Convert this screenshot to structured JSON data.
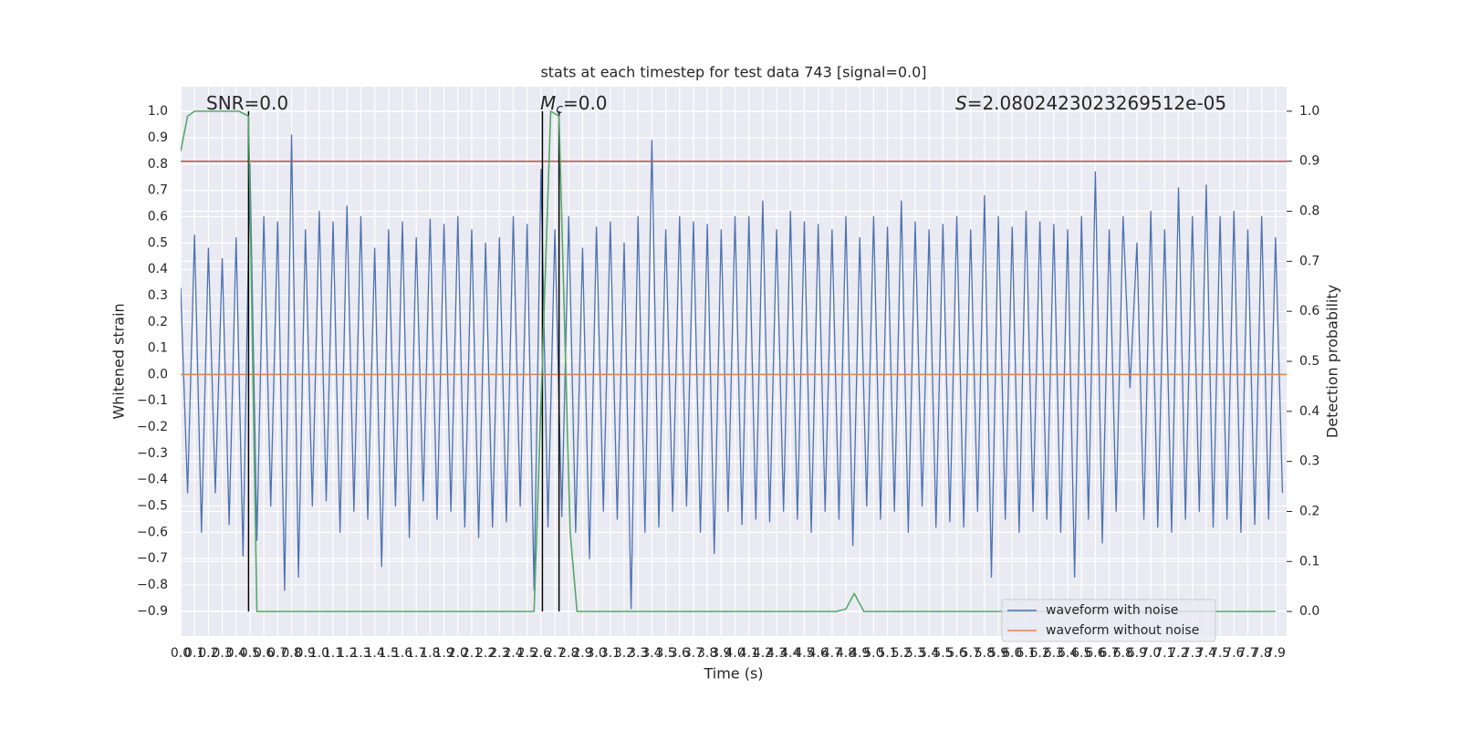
{
  "chart_data": {
    "type": "line",
    "title": "stats at each timestep for test data 743 [signal=0.0]",
    "xlabel": "Time (s)",
    "ylabel": "Whitened strain",
    "y2label": "Detection probability",
    "grid": true,
    "legend": "lower right",
    "xlim": [
      0,
      7.98
    ],
    "ylim": [
      -0.994,
      1.094
    ],
    "y2lim": [
      -0.049,
      1.049
    ],
    "xticks": [
      {
        "value": 0,
        "label": "0.0"
      },
      0.1,
      0.2,
      0.3,
      0.4,
      0.5,
      0.6,
      0.7,
      0.8,
      0.9,
      {
        "value": 1,
        "label": "1.0"
      },
      1.1,
      1.2,
      1.3,
      1.4,
      1.5,
      1.6,
      1.7,
      1.8,
      1.9,
      {
        "value": 2,
        "label": "2.0"
      },
      2.1,
      2.2,
      2.3,
      2.4,
      2.5,
      2.6,
      2.7,
      2.8,
      2.9,
      {
        "value": 3,
        "label": "3.0"
      },
      3.1,
      3.2,
      3.3,
      3.4,
      3.5,
      3.6,
      3.7,
      3.8,
      3.9,
      {
        "value": 4,
        "label": "4.0"
      },
      4.1,
      4.2,
      4.3,
      4.4,
      4.5,
      4.6,
      4.7,
      4.8,
      4.9,
      {
        "value": 5,
        "label": "5.0"
      },
      5.1,
      5.2,
      5.3,
      5.4,
      5.5,
      5.6,
      5.7,
      5.8,
      5.9,
      {
        "value": 6,
        "label": "6.0"
      },
      6.1,
      6.2,
      6.3,
      6.4,
      6.5,
      6.6,
      6.7,
      6.8,
      6.9,
      {
        "value": 7,
        "label": "7.0"
      },
      7.1,
      7.2,
      7.3,
      7.4,
      7.5,
      7.6,
      7.7,
      7.8,
      7.9
    ],
    "yticks": [
      {
        "value": 1,
        "label": "1.0"
      },
      0.9,
      0.8,
      0.7,
      0.6,
      0.5,
      0.4,
      0.3,
      0.2,
      0.1,
      {
        "value": 0,
        "label": "0.0"
      },
      {
        "value": -0.1,
        "label": "−0.1"
      },
      {
        "value": -0.2,
        "label": "−0.2"
      },
      {
        "value": -0.3,
        "label": "−0.3"
      },
      {
        "value": -0.4,
        "label": "−0.4"
      },
      {
        "value": -0.5,
        "label": "−0.5"
      },
      {
        "value": -0.6,
        "label": "−0.6"
      },
      {
        "value": -0.7,
        "label": "−0.7"
      },
      {
        "value": -0.8,
        "label": "−0.8"
      },
      {
        "value": -0.9,
        "label": "−0.9"
      }
    ],
    "y2ticks": [
      {
        "value": 1,
        "label": "1.0"
      },
      0.9,
      0.8,
      0.7,
      0.6,
      0.5,
      0.4,
      0.3,
      0.2,
      0.1,
      {
        "value": 0,
        "label": "0.0"
      }
    ],
    "series": [
      {
        "name": "waveform with noise",
        "color": "#4c72b0",
        "x": [
          0,
          0.05,
          0.1,
          0.15,
          0.2,
          0.25,
          0.3,
          0.35,
          0.4,
          0.45,
          0.5,
          0.55,
          0.6,
          0.65,
          0.7,
          0.75,
          0.8,
          0.85,
          0.9,
          0.95,
          1,
          1.05,
          1.1,
          1.15,
          1.2,
          1.25,
          1.3,
          1.35,
          1.4,
          1.45,
          1.5,
          1.55,
          1.6,
          1.65,
          1.7,
          1.75,
          1.8,
          1.85,
          1.9,
          1.95,
          2,
          2.05,
          2.1,
          2.15,
          2.2,
          2.25,
          2.3,
          2.35,
          2.4,
          2.45,
          2.5,
          2.55,
          2.6,
          2.65,
          2.7,
          2.75,
          2.8,
          2.85,
          2.9,
          2.95,
          3,
          3.05,
          3.1,
          3.15,
          3.2,
          3.25,
          3.3,
          3.35,
          3.4,
          3.45,
          3.5,
          3.55,
          3.6,
          3.65,
          3.7,
          3.75,
          3.8,
          3.85,
          3.9,
          3.95,
          4,
          4.05,
          4.1,
          4.15,
          4.2,
          4.25,
          4.3,
          4.35,
          4.4,
          4.45,
          4.5,
          4.55,
          4.6,
          4.65,
          4.7,
          4.75,
          4.8,
          4.85,
          4.9,
          4.95,
          5,
          5.05,
          5.1,
          5.15,
          5.2,
          5.25,
          5.3,
          5.35,
          5.4,
          5.45,
          5.5,
          5.55,
          5.6,
          5.65,
          5.7,
          5.75,
          5.8,
          5.85,
          5.9,
          5.95,
          6,
          6.05,
          6.1,
          6.15,
          6.2,
          6.25,
          6.3,
          6.35,
          6.4,
          6.45,
          6.5,
          6.55,
          6.6,
          6.65,
          6.7,
          6.75,
          6.8,
          6.85,
          6.9,
          6.95,
          7,
          7.05,
          7.1,
          7.15,
          7.2,
          7.25,
          7.3,
          7.35,
          7.4,
          7.45,
          7.5,
          7.55,
          7.6,
          7.65,
          7.7,
          7.75,
          7.8,
          7.85,
          7.9,
          7.95
        ],
        "values": [
          0.33,
          -0.45,
          0.53,
          -0.6,
          0.48,
          -0.45,
          0.44,
          -0.57,
          0.52,
          -0.69,
          0.8,
          -0.63,
          0.6,
          -0.5,
          0.58,
          -0.82,
          0.91,
          -0.77,
          0.55,
          -0.5,
          0.62,
          -0.48,
          0.58,
          -0.6,
          0.64,
          -0.52,
          0.6,
          -0.55,
          0.48,
          -0.73,
          0.55,
          -0.5,
          0.58,
          -0.62,
          0.52,
          -0.48,
          0.59,
          -0.55,
          0.57,
          -0.52,
          0.6,
          -0.58,
          0.55,
          -0.62,
          0.5,
          -0.58,
          0.52,
          -0.56,
          0.6,
          -0.5,
          0.57,
          -0.82,
          0.78,
          -0.58,
          0.55,
          -0.54,
          0.6,
          -0.6,
          0.48,
          -0.7,
          0.56,
          -0.52,
          0.58,
          -0.55,
          0.5,
          -0.89,
          0.6,
          -0.6,
          0.89,
          -0.58,
          0.55,
          -0.52,
          0.6,
          -0.5,
          0.58,
          -0.6,
          0.57,
          -0.68,
          0.55,
          -0.52,
          0.6,
          -0.57,
          0.6,
          -0.55,
          0.66,
          -0.56,
          0.55,
          -0.52,
          0.62,
          -0.55,
          0.58,
          -0.6,
          0.57,
          -0.52,
          0.55,
          -0.55,
          0.6,
          -0.65,
          0.52,
          -0.5,
          0.6,
          -0.55,
          0.56,
          -0.52,
          0.66,
          -0.6,
          0.58,
          -0.5,
          0.55,
          -0.58,
          0.57,
          -0.56,
          0.6,
          -0.58,
          0.55,
          -0.52,
          0.68,
          -0.77,
          0.6,
          -0.55,
          0.56,
          -0.6,
          0.62,
          -0.52,
          0.58,
          -0.55,
          0.57,
          -0.6,
          0.55,
          -0.77,
          0.6,
          -0.55,
          0.77,
          -0.64,
          0.55,
          -0.52,
          0.6,
          -0.05,
          0.5,
          -0.55,
          0.62,
          -0.58,
          0.55,
          -0.6,
          0.71,
          -0.55,
          0.6,
          -0.52,
          0.72,
          -0.58,
          0.6,
          -0.55,
          0.62,
          -0.6,
          0.55,
          -0.57,
          0.6,
          -0.55,
          0.52,
          -0.45
        ]
      },
      {
        "name": "waveform without noise",
        "color": "#dd8452",
        "x": [
          0,
          7.98
        ],
        "values": [
          0,
          0
        ]
      }
    ],
    "probability": {
      "color": "#55a868",
      "axis": "y2",
      "x": [
        0,
        0.05,
        0.1,
        0.42,
        0.49,
        0.55,
        2.55,
        2.67,
        2.73,
        2.81,
        2.86,
        4.73,
        4.8,
        4.86,
        4.93,
        7.9
      ],
      "values": [
        0.92,
        0.99,
        1.0,
        1.0,
        0.99,
        0.0,
        0.0,
        1.0,
        0.99,
        0.16,
        0.0,
        0.0,
        0.005,
        0.036,
        0.0,
        0.0
      ]
    },
    "threshold": {
      "value": 0.9,
      "color": "#c44e52",
      "axis": "y2"
    },
    "vlines": {
      "x": [
        0.49,
        2.61,
        2.73
      ],
      "color": "#000000"
    },
    "annotations": [
      {
        "text": "SNR=0.0"
      },
      {
        "symbol": "M",
        "subscript": "c",
        "text": "=0.0"
      },
      {
        "symbol": "S",
        "text": "=2.0802423023269512e-05"
      }
    ]
  }
}
